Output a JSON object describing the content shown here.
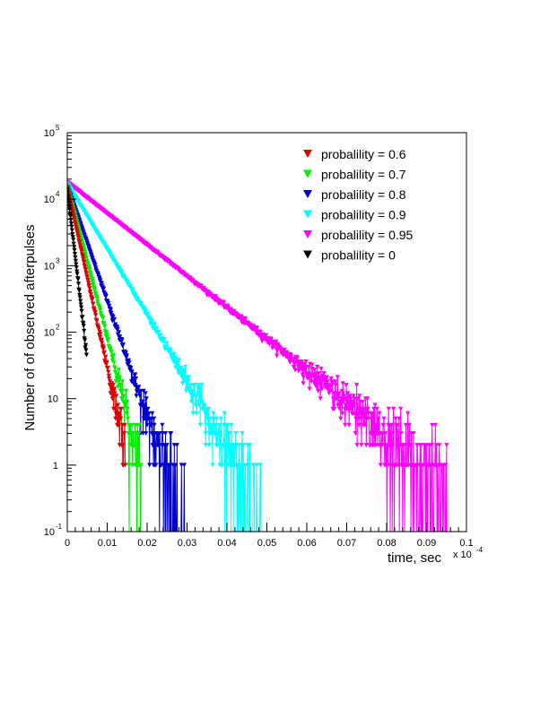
{
  "chart_data": {
    "type": "scatter",
    "title": "",
    "xlabel": "time, sec",
    "ylabel": "Number of of observed afterpulses",
    "x_multiplier": "x 10",
    "x_multiplier_exp": "-4",
    "xlim": [
      0,
      0.1
    ],
    "ylim": [
      0.1,
      100000
    ],
    "y_scale": "log",
    "grid": false,
    "legend_position": "top-right",
    "x_ticks": [
      "0",
      "0.01",
      "0.02",
      "0.03",
      "0.04",
      "0.05",
      "0.06",
      "0.07",
      "0.08",
      "0.09",
      "0.1"
    ],
    "y_ticks": [
      {
        "base": "10",
        "exp": "-1",
        "value": 0.1
      },
      {
        "base": "1",
        "exp": "",
        "value": 1
      },
      {
        "base": "10",
        "exp": "",
        "value": 10
      },
      {
        "base": "10",
        "exp": "2",
        "value": 100
      },
      {
        "base": "10",
        "exp": "3",
        "value": 1000
      },
      {
        "base": "10",
        "exp": "4",
        "value": 10000
      },
      {
        "base": "10",
        "exp": "5",
        "value": 100000
      }
    ],
    "series": [
      {
        "name": "probalility = 0.6",
        "color": "#dd0000",
        "start_y": 15000,
        "decay_tau": 0.0016,
        "x_end": 0.0145
      },
      {
        "name": "probalility = 0.7",
        "color": "#00ee00",
        "start_y": 16000,
        "decay_tau": 0.0019,
        "x_end": 0.0185
      },
      {
        "name": "probalility = 0.8",
        "color": "#0000cc",
        "start_y": 16000,
        "decay_tau": 0.0025,
        "x_end": 0.03
      },
      {
        "name": "probalility = 0.9",
        "color": "#00ffff",
        "start_y": 17000,
        "decay_tau": 0.0044,
        "x_end": 0.049
      },
      {
        "name": "probalility = 0.95",
        "color": "#ff00ff",
        "start_y": 18000,
        "decay_tau": 0.0092,
        "x_end": 0.0955
      },
      {
        "name": "probalility = 0",
        "color": "#000000",
        "start_y": 14000,
        "decay_tau": 0.00085,
        "x_end": 0.0048
      }
    ]
  }
}
